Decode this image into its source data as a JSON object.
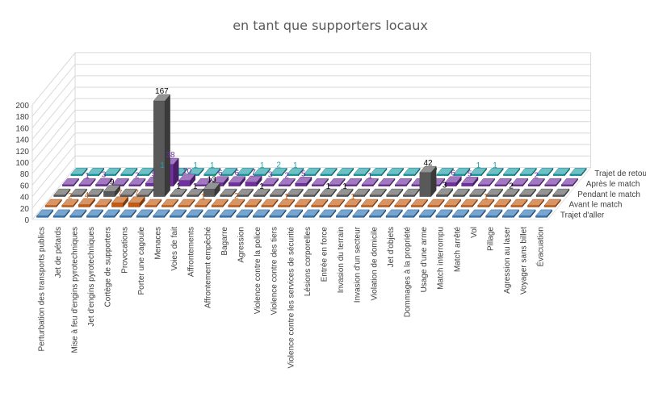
{
  "chart_data": {
    "type": "bar",
    "title": "en tant que supporters locaux",
    "ylim": [
      0,
      200
    ],
    "yticks": [
      "0",
      "20",
      "40",
      "60",
      "80",
      "100",
      "120",
      "140",
      "160",
      "180",
      "200"
    ],
    "categories": [
      "Perturbation des transports publics",
      "Jet de pétards",
      "Mise à feu d'engins pyrotechniques",
      "Jet d'engins pyrotechniques",
      "Cortège de supporters",
      "Provocations",
      "Porter une cagoule",
      "Menaces",
      "Voies de fait",
      "Affrontements",
      "Affrontement empêché",
      "Bagarre",
      "Agression",
      "Violence contre la police",
      "Violence contre des tiers",
      "Violence contre les services de sécurité",
      "Lésions corporelles",
      "Entrée en force",
      "Invasion du terrain",
      "Invasion d'un secteur",
      "Violation de domicile",
      "Jet d'objets",
      "Dommages à la propriété",
      "Usage d'une arme",
      "Match interrompu",
      "Match arrêté",
      "Vol",
      "Pillage",
      "Agression au laser",
      "Voyager sans billet",
      "Évacuation"
    ],
    "series": [
      {
        "name": "Trajet d'aller",
        "color": "#2e75b6",
        "values": [
          0,
          0,
          0,
          0,
          0,
          0,
          0,
          0,
          0,
          0,
          0,
          0,
          0,
          0,
          0,
          0,
          0,
          0,
          0,
          0,
          0,
          0,
          0,
          0,
          0,
          0,
          0,
          0,
          0,
          0,
          0
        ]
      },
      {
        "name": "Avant le match",
        "color": "#c55a11",
        "values": [
          0,
          2,
          4,
          0,
          7,
          7,
          0,
          0,
          0,
          1,
          0,
          2,
          0,
          0,
          1,
          0,
          0,
          0,
          1,
          0,
          0,
          0,
          0,
          0,
          0,
          0,
          1,
          0,
          0,
          0,
          0
        ]
      },
      {
        "name": "Pendant le match",
        "color": "#595959",
        "values": [
          0,
          0,
          0,
          9,
          0,
          0,
          167,
          1,
          1,
          13,
          0,
          0,
          1,
          0,
          0,
          0,
          1,
          1,
          0,
          0,
          0,
          0,
          42,
          3,
          0,
          0,
          0,
          2,
          0,
          0,
          0
        ]
      },
      {
        "name": "Après le match",
        "color": "#7030a0",
        "values": [
          0,
          1,
          3,
          0,
          2,
          5,
          38,
          10,
          0,
          6,
          6,
          7,
          3,
          2,
          5,
          0,
          0,
          0,
          1,
          0,
          0,
          0,
          0,
          6,
          5,
          0,
          0,
          0,
          2,
          0,
          0
        ]
      },
      {
        "name": "Trajet de retour",
        "color": "#1d9fa8",
        "values": [
          0,
          0,
          0,
          0,
          0,
          1,
          0,
          1,
          1,
          0,
          0,
          1,
          2,
          1,
          0,
          0,
          0,
          0,
          0,
          0,
          0,
          0,
          0,
          0,
          1,
          1,
          0,
          0,
          0,
          0,
          0
        ]
      }
    ],
    "grid": true,
    "legend": "series labels on right side"
  }
}
